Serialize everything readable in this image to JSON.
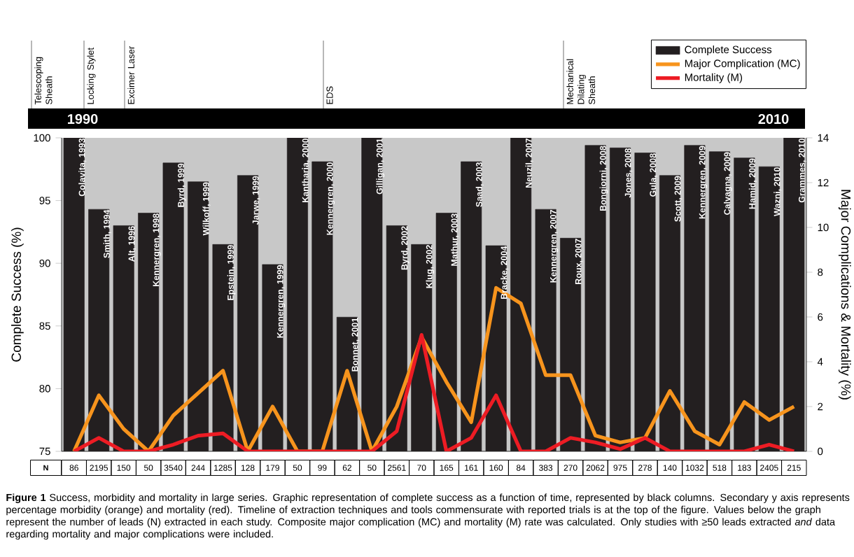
{
  "chart_data": {
    "type": "bar",
    "categories": [
      "Colavita, 1993",
      "Smith, 1994",
      "Alt, 1996",
      "Kennergren, 1998",
      "Byrd, 1999",
      "Wilkoff, 1999",
      "Epstein, 1999",
      "Jarwe, 1999",
      "Kennergren, 1999",
      "Kantharia, 2000",
      "Kennergren, 2000",
      "Bonnet, 2001",
      "Gilligan, 2001",
      "Byrd, 2002",
      "Klug, 2002",
      "Mathur, 2003",
      "Saad, 2003",
      "Bracke, 2004",
      "Neuzil, 2007",
      "Kennergren, 2007",
      "Roux, 2007",
      "Bongiorni, 2008",
      "Jones, 2008",
      "Gula, 2008",
      "Scott, 2009",
      "Kennergren, 2009",
      "Calvagna, 2009",
      "Hamid, 2009",
      "Wazni, 2010",
      "Grammes, 2010"
    ],
    "series": [
      {
        "name": "Complete Success",
        "color": "#231f20",
        "values": [
          100,
          94.3,
          93.0,
          94.0,
          98.0,
          96.5,
          91.5,
          97.0,
          89.9,
          100,
          98.1,
          85.7,
          100,
          93.0,
          91.5,
          94.0,
          98.1,
          91.4,
          100,
          94.3,
          92.0,
          99.4,
          99.2,
          98.8,
          97.0,
          99.4,
          98.9,
          98.4,
          97.7,
          100
        ]
      },
      {
        "name": "Major Complication (MC)",
        "type": "line",
        "axis": "y2",
        "color": "#f7941d",
        "values": [
          0,
          2.5,
          1.0,
          0,
          1.6,
          2.6,
          3.6,
          0,
          2.0,
          0,
          0,
          3.6,
          0,
          2.0,
          5.1,
          3.1,
          1.3,
          7.3,
          6.6,
          3.4,
          3.4,
          0.7,
          0.4,
          0.6,
          2.7,
          0.9,
          0.3,
          2.2,
          1.4,
          2.0
        ]
      },
      {
        "name": "Mortality (M)",
        "type": "line",
        "axis": "y2",
        "color": "#ed1c24",
        "values": [
          0,
          0.6,
          0,
          0,
          0.3,
          0.7,
          0.8,
          0,
          0,
          0,
          0,
          0,
          0,
          0.9,
          5.2,
          0,
          0.6,
          2.5,
          0,
          0,
          0.6,
          0.4,
          0.1,
          0.6,
          0,
          0,
          0,
          0,
          0.3,
          0
        ]
      }
    ],
    "ylabel": "Complete Success (%)",
    "y2label": "Major Complications & Mortality (%)",
    "ylim": [
      75,
      100
    ],
    "yticks": [
      75,
      80,
      85,
      90,
      95,
      100
    ],
    "y2lim": [
      0,
      14
    ],
    "y2ticks": [
      0,
      2,
      4,
      6,
      8,
      10,
      12,
      14
    ],
    "legend": "top right",
    "annotations": [
      "Telescoping Sheath",
      "Locking Stylet",
      "Excimer Laser",
      "EDS",
      "Mechanical Dilating Sheath",
      "1990",
      "2010",
      "N",
      "86",
      "2195",
      "150",
      "50",
      "3540",
      "244",
      "1285",
      "128",
      "179",
      "50",
      "99",
      "62",
      "50",
      "2561",
      "70",
      "165",
      "161",
      "160",
      "84",
      "383",
      "270",
      "2062",
      "975",
      "278",
      "140",
      "1032",
      "518",
      "183",
      "2405",
      "215",
      "**Figure 1** Success, morbidity and mortality in large series. Graphic representation of complete success as a function of time, represented by black columns. Secondary y axis represents percentage morbidity (orange) and mortality (red). Timeline of extraction techniques and tools commensurate with reported trials is at the top of the figure. Values below the graph represent the number of leads (N) extracted in each study. Composite major complication (MC) and mortality (M) rate was calculated. Only studies with ≥50 leads extracted *and* data regarding mortality and major complications were included."
    ]
  }
}
